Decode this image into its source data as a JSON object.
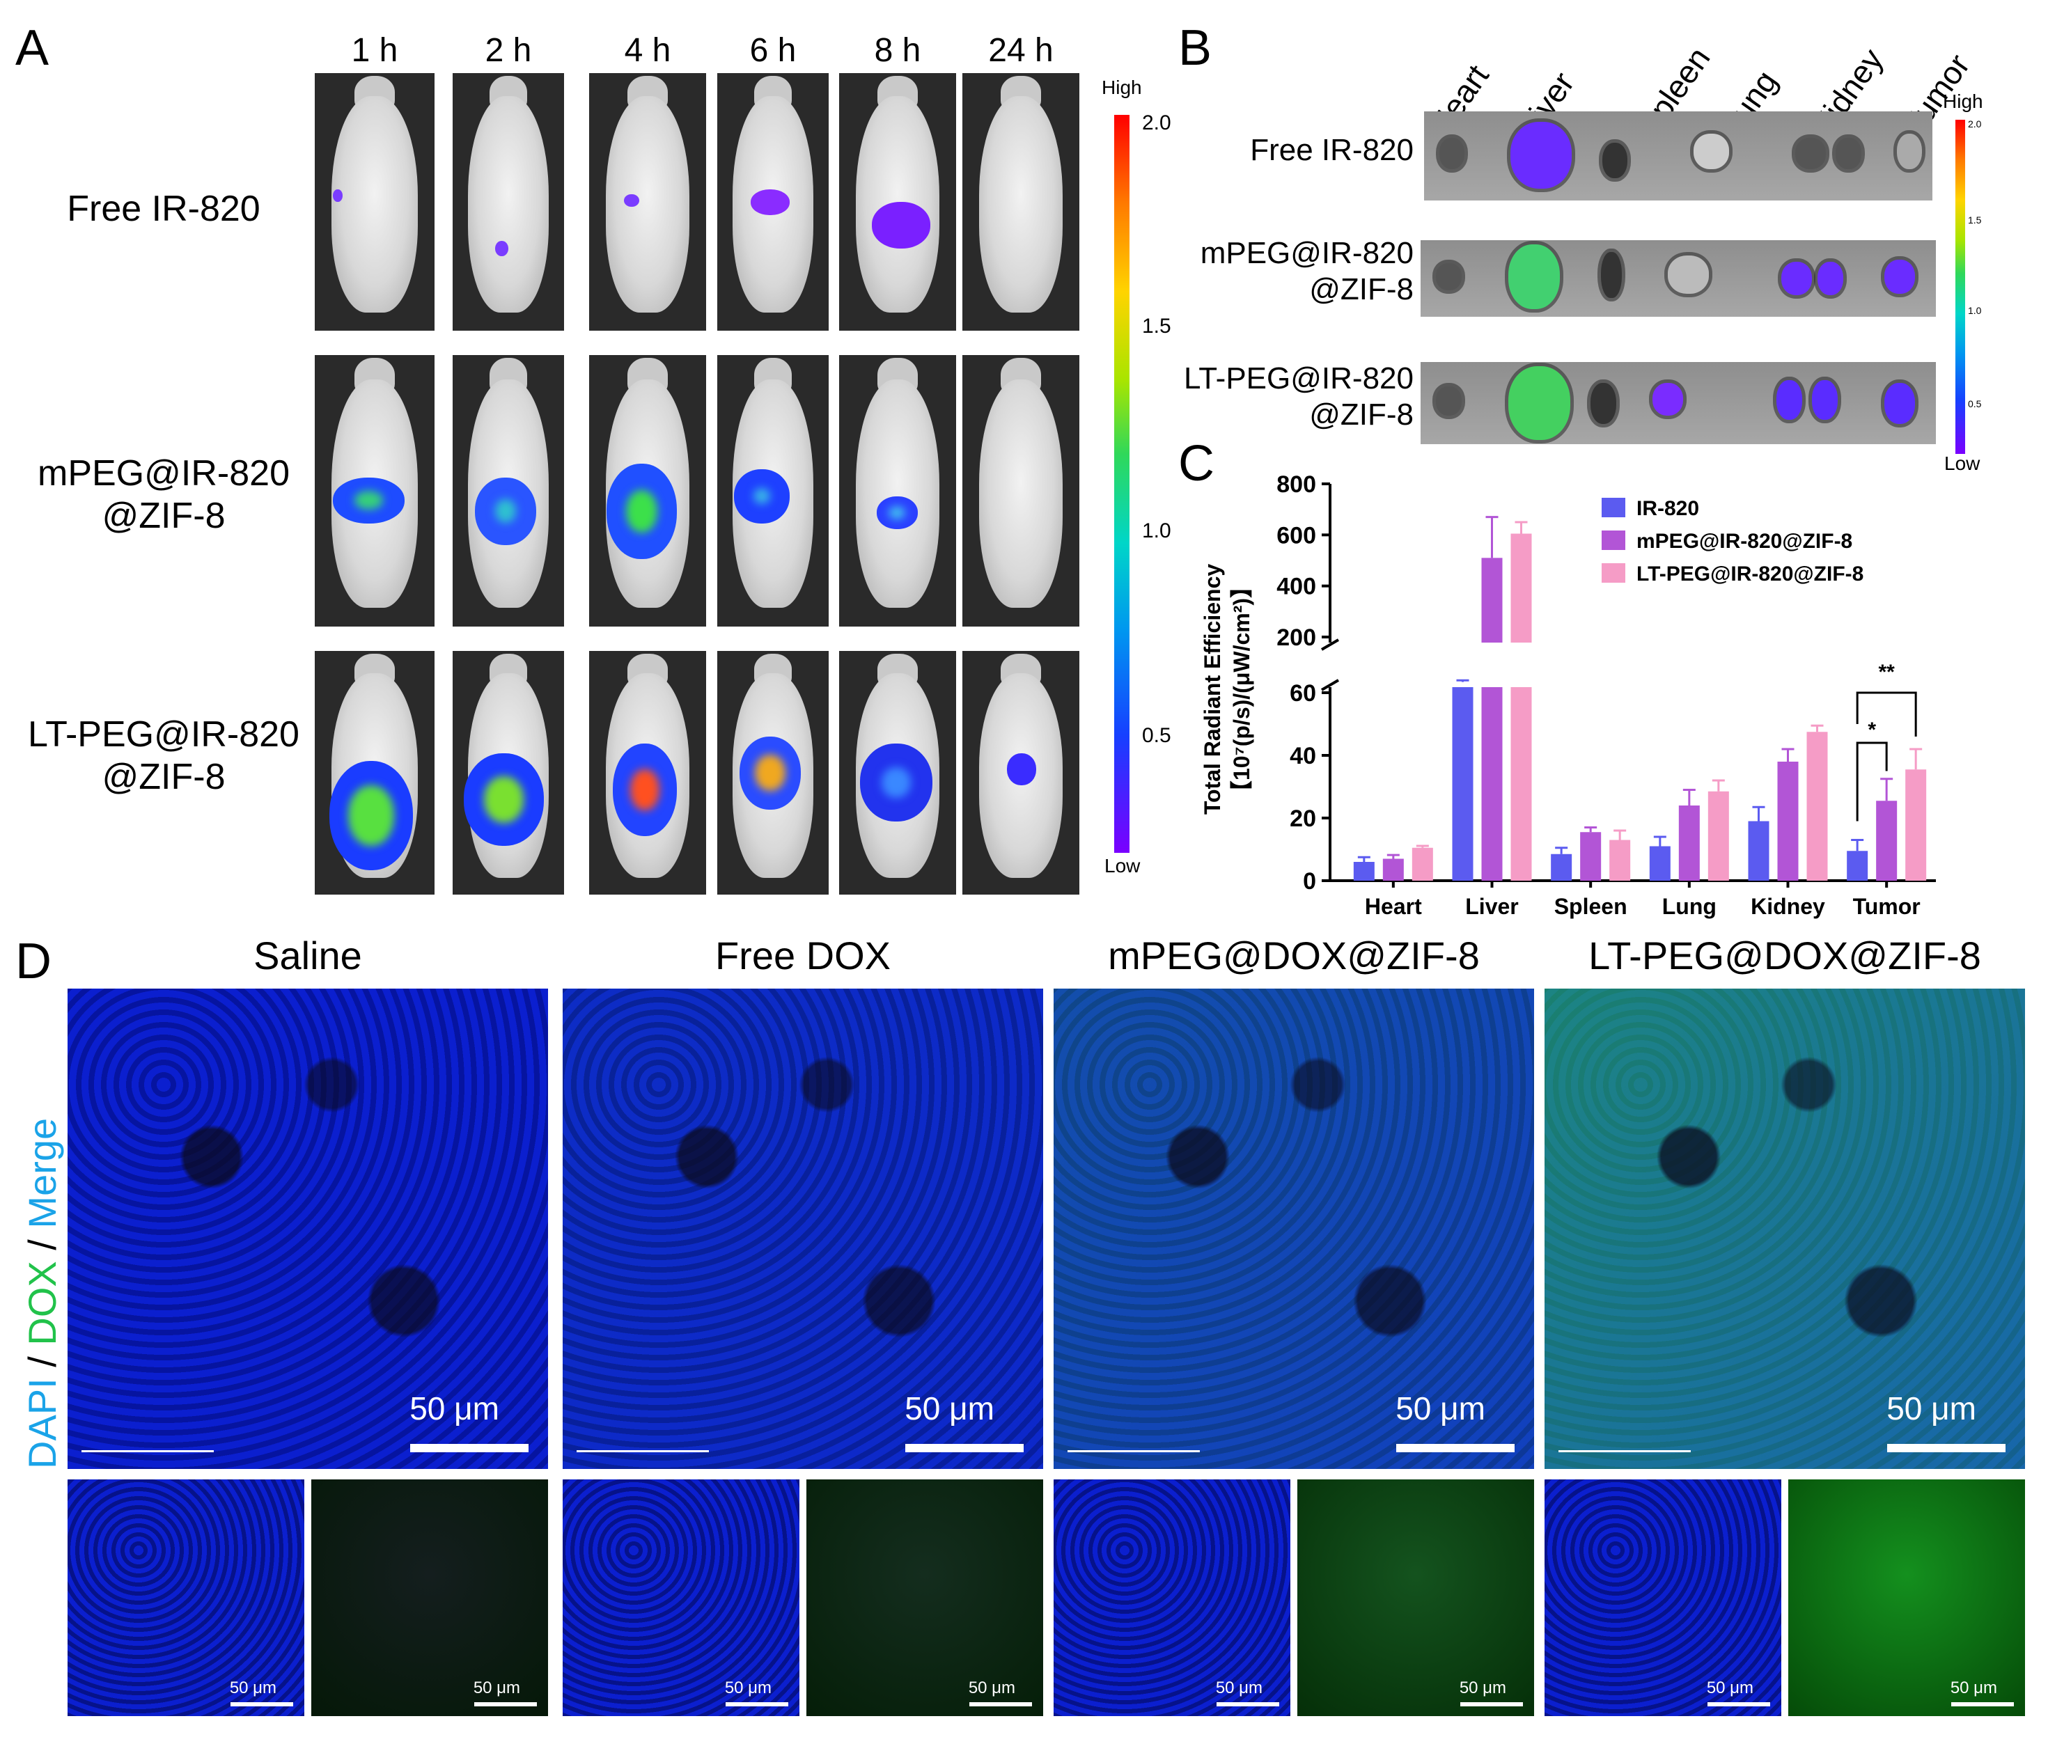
{
  "panel_letters": {
    "a": "A",
    "b": "B",
    "c": "C",
    "d": "D"
  },
  "panel_a": {
    "timepoints": [
      "1 h",
      "2 h",
      "4 h",
      "6 h",
      "8 h",
      "24 h"
    ],
    "rows": [
      {
        "line1": "Free IR-820",
        "line2": ""
      },
      {
        "line1": "mPEG@IR-820",
        "line2": "@ZIF-8"
      },
      {
        "line1": "LT-PEG@IR-820",
        "line2": "@ZIF-8"
      }
    ],
    "colorbar": {
      "high": "High",
      "low": "Low",
      "ticks": [
        "2.0",
        "1.5",
        "1.0",
        "0.5"
      ]
    }
  },
  "panel_b": {
    "organs": [
      "Heart",
      "Liver",
      "Spleen",
      "Lung",
      "Kidney",
      "Tumor"
    ],
    "rows": [
      {
        "line1": "Free IR-820",
        "line2": ""
      },
      {
        "line1": "mPEG@IR-820",
        "line2": "@ZIF-8"
      },
      {
        "line1": "LT-PEG@IR-820",
        "line2": "@ZIF-8"
      }
    ],
    "colorbar": {
      "high": "High",
      "low": "Low",
      "ticks": [
        "2.0",
        "1.5",
        "1.0",
        "0.5"
      ]
    }
  },
  "chart_data": {
    "type": "bar",
    "categories": [
      "Heart",
      "Liver",
      "Spleen",
      "Lung",
      "Kidney",
      "Tumor"
    ],
    "ylabel_line1": "Total Radiant Efficiency",
    "ylabel_line2": "【10⁷(p/s)/(μW/cm²)】",
    "yticks_lower": [
      "0",
      "20",
      "40",
      "60"
    ],
    "yticks_upper": [
      "200",
      "400",
      "600",
      "800"
    ],
    "ylim_lower": [
      0,
      60
    ],
    "ylim_upper": [
      60,
      800
    ],
    "axis_break": "60",
    "series": [
      {
        "name": "IR-820",
        "color": "#5b5bf0",
        "values": [
          6,
          87,
          8.5,
          11,
          19,
          9.5
        ],
        "errors": [
          1.5,
          4,
          2,
          3,
          4.5,
          3.5
        ]
      },
      {
        "name": "mPEG@IR-820@ZIF-8",
        "color": "#b255d6",
        "values": [
          7,
          510,
          15.5,
          24,
          38,
          25.5
        ],
        "errors": [
          1.2,
          160,
          1.5,
          5,
          4,
          7
        ]
      },
      {
        "name": "LT-PEG@IR-820@ZIF-8",
        "color": "#f59cc6",
        "values": [
          10.5,
          605,
          13,
          28.5,
          47.5,
          35.5
        ],
        "errors": [
          0.6,
          45,
          3,
          3.5,
          2,
          6.5
        ]
      }
    ],
    "significance": [
      {
        "label": "*",
        "from_series": 0,
        "to_series": 1,
        "category": "Tumor"
      },
      {
        "label": "**",
        "from_series": 0,
        "to_series": 2,
        "category": "Tumor"
      }
    ],
    "legend_position": "top-right"
  },
  "panel_d": {
    "groups": [
      "Saline",
      "Free DOX",
      "mPEG@DOX@ZIF-8",
      "LT-PEG@DOX@ZIF-8"
    ],
    "side_label": {
      "dapi": "DAPI",
      "sep1": " / ",
      "dox": "DOX",
      "sep2": " / ",
      "merge": "Merge"
    },
    "scale_big": "50 μm",
    "scale_small": "50 μm",
    "colors": {
      "dapi": "#0a1ee8",
      "dox": "#21c24a",
      "merge_label": "#1aa3e8"
    }
  }
}
